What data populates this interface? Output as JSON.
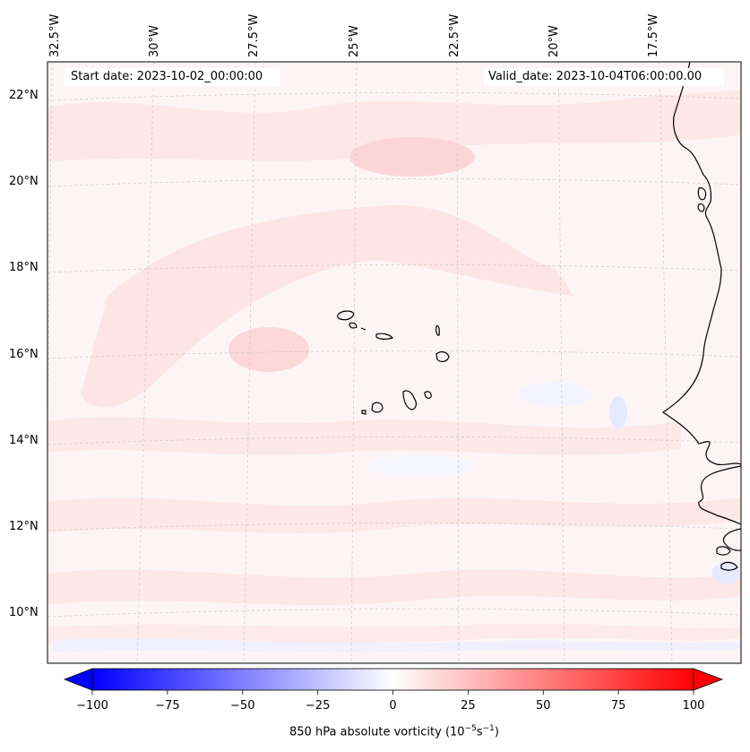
{
  "map": {
    "start_date": "Start date: 2023-10-02_00:00:00",
    "valid_date": "Valid_date: 2023-10-04T06:00:00.00",
    "lon_labels": [
      "32.5°W",
      "30°W",
      "27.5°W",
      "25°W",
      "22.5°W",
      "20°W",
      "17.5°W"
    ],
    "lat_labels": [
      "22°N",
      "20°N",
      "18°N",
      "16°N",
      "14°N",
      "12°N",
      "10°N"
    ],
    "field": "850 hPa absolute vorticity",
    "projection_note": "Lambert conformal, coastlines black, dashed grey gridlines"
  },
  "colorbar": {
    "label": "850 hPa absolute vorticity (10",
    "label_exp1": "−5",
    "label_mid": "s",
    "label_exp2": "−1",
    "label_end": ")",
    "ticks": [
      "−100",
      "−75",
      "−50",
      "−25",
      "0",
      "25",
      "50",
      "75",
      "100"
    ],
    "tick_values": [
      -100,
      -75,
      -50,
      -25,
      0,
      25,
      50,
      75,
      100
    ],
    "range": [
      -100,
      100
    ],
    "cmap_low": "#0000ff",
    "cmap_mid": "#ffffff",
    "cmap_high": "#ff0000",
    "extend": "both"
  },
  "colors": {
    "background_field": "#fdf4f4",
    "positive_tint": "#fde1e1",
    "negative_tint": "#f3f5ff",
    "coastline": "#000000",
    "gridline": "#c8c8c8"
  }
}
